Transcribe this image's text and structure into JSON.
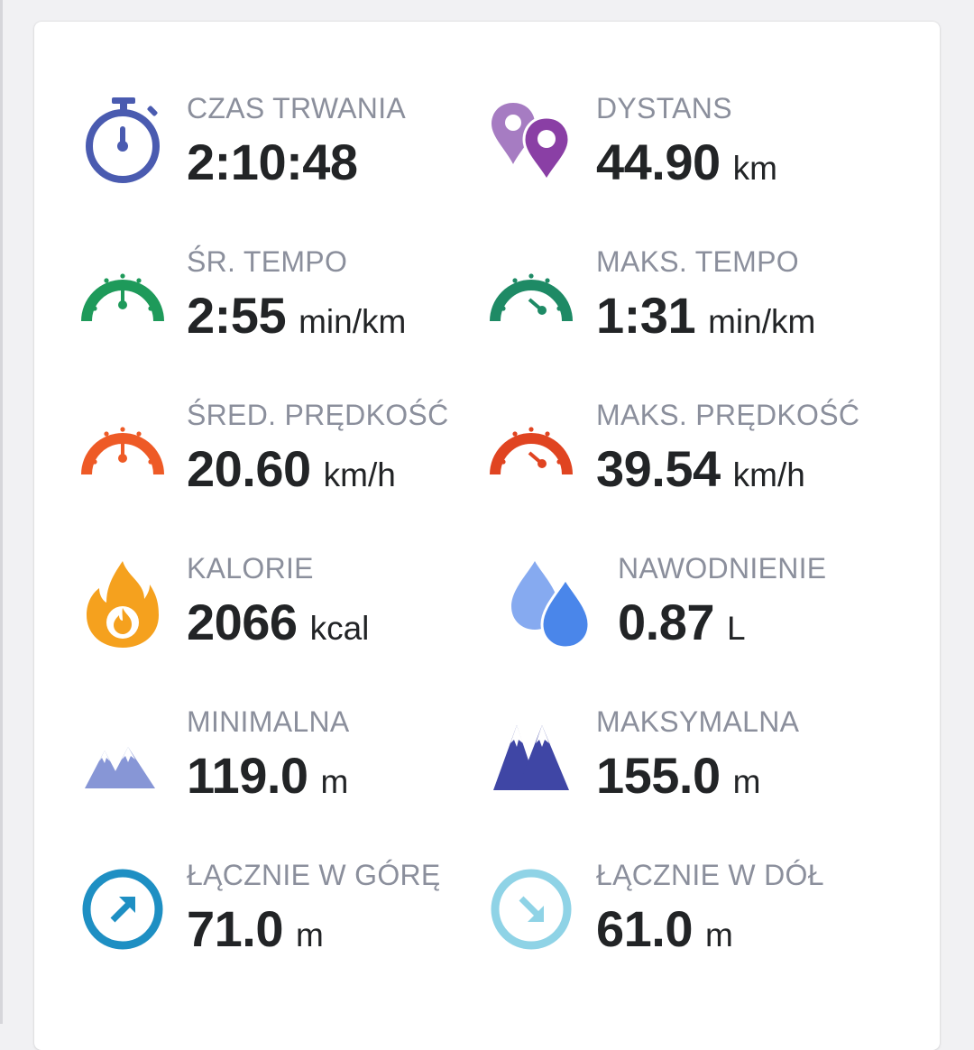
{
  "stats": [
    {
      "label": "CZAS TRWANIA",
      "value": "2:10:48",
      "unit": "",
      "icon": "stopwatch-icon"
    },
    {
      "label": "DYSTANS",
      "value": "44.90",
      "unit": "km",
      "icon": "map-pins-icon"
    },
    {
      "label": "ŚR. TEMPO",
      "value": "2:55",
      "unit": "min/km",
      "icon": "speedometer-icon"
    },
    {
      "label": "MAKS. TEMPO",
      "value": "1:31",
      "unit": "min/km",
      "icon": "speedometer-max-icon"
    },
    {
      "label": "ŚRED. PRĘDKOŚĆ",
      "value": "20.60",
      "unit": "km/h",
      "icon": "speedometer-icon"
    },
    {
      "label": "MAKS. PRĘDKOŚĆ",
      "value": "39.54",
      "unit": "km/h",
      "icon": "speedometer-max-icon"
    },
    {
      "label": "KALORIE",
      "value": "2066",
      "unit": "kcal",
      "icon": "flame-icon"
    },
    {
      "label": "NAWODNIENIE",
      "value": "0.87",
      "unit": "L",
      "icon": "water-drops-icon"
    },
    {
      "label": "MINIMALNA",
      "value": "119.0",
      "unit": "m",
      "icon": "mountains-icon"
    },
    {
      "label": "MAKSYMALNA",
      "value": "155.0",
      "unit": "m",
      "icon": "mountains-icon"
    },
    {
      "label": "ŁĄCZNIE W GÓRĘ",
      "value": "71.0",
      "unit": "m",
      "icon": "ascent-arrow-icon"
    },
    {
      "label": "ŁĄCZNIE W DÓŁ",
      "value": "61.0",
      "unit": "m",
      "icon": "descent-arrow-icon"
    }
  ],
  "colors": {
    "label": "#8b8f9c",
    "value": "#222426",
    "stopwatch": "#4a5bb0",
    "pin_light": "#a67cc2",
    "pin_dark": "#8a3fa5",
    "pace": "#1e9a5a",
    "max_pace": "#1e8a65",
    "speed": "#ee5a26",
    "max_speed": "#e04421",
    "flame": "#f5a11e",
    "drop_light": "#86aaf0",
    "drop_dark": "#4a86ea",
    "mountain_light": "#8796d6",
    "mountain_dark": "#3f46a5",
    "ascent": "#1e8fc3",
    "descent": "#8fd3e6"
  }
}
